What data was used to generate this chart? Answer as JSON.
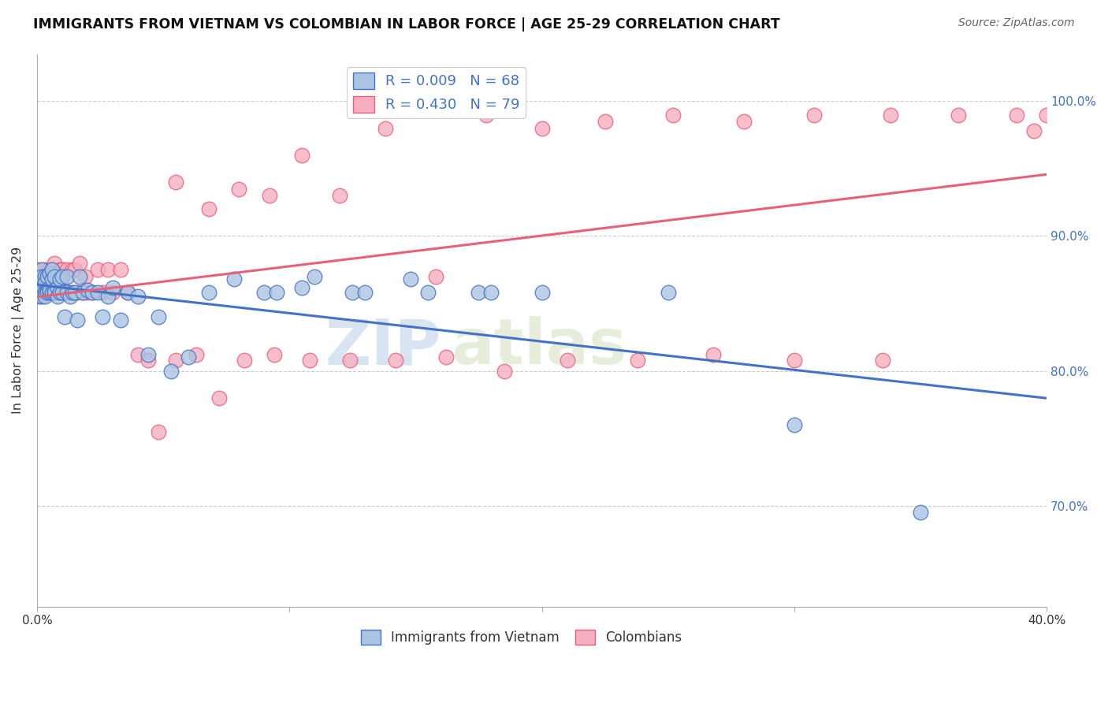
{
  "title": "IMMIGRANTS FROM VIETNAM VS COLOMBIAN IN LABOR FORCE | AGE 25-29 CORRELATION CHART",
  "source": "Source: ZipAtlas.com",
  "ylabel": "In Labor Force | Age 25-29",
  "ylabel_right_ticks": [
    "100.0%",
    "90.0%",
    "80.0%",
    "70.0%"
  ],
  "ylabel_right_vals": [
    1.0,
    0.9,
    0.8,
    0.7
  ],
  "xlim": [
    0.0,
    0.4
  ],
  "ylim": [
    0.625,
    1.035
  ],
  "color_vietnam": "#aac4e2",
  "color_colombian": "#f5afc0",
  "line_color_vietnam": "#4472c4",
  "line_color_colombian": "#e8607a",
  "watermark_zip": "ZIP",
  "watermark_atlas": "atlas",
  "vietnam_R": 0.009,
  "vietnam_N": 68,
  "colombian_R": 0.43,
  "colombian_N": 79,
  "vietnam_x": [
    0.001,
    0.001,
    0.001,
    0.002,
    0.002,
    0.002,
    0.002,
    0.003,
    0.003,
    0.003,
    0.003,
    0.004,
    0.004,
    0.004,
    0.005,
    0.005,
    0.005,
    0.005,
    0.006,
    0.006,
    0.006,
    0.007,
    0.007,
    0.007,
    0.008,
    0.008,
    0.009,
    0.009,
    0.01,
    0.01,
    0.011,
    0.012,
    0.012,
    0.013,
    0.014,
    0.015,
    0.016,
    0.017,
    0.018,
    0.02,
    0.022,
    0.024,
    0.026,
    0.028,
    0.03,
    0.033,
    0.036,
    0.04,
    0.044,
    0.048,
    0.053,
    0.06,
    0.068,
    0.078,
    0.09,
    0.105,
    0.125,
    0.148,
    0.175,
    0.2,
    0.095,
    0.11,
    0.13,
    0.155,
    0.18,
    0.25,
    0.3,
    0.35
  ],
  "vietnam_y": [
    0.87,
    0.86,
    0.855,
    0.875,
    0.86,
    0.87,
    0.855,
    0.87,
    0.865,
    0.858,
    0.855,
    0.86,
    0.87,
    0.858,
    0.862,
    0.858,
    0.872,
    0.86,
    0.858,
    0.868,
    0.875,
    0.86,
    0.858,
    0.87,
    0.862,
    0.855,
    0.858,
    0.868,
    0.87,
    0.858,
    0.84,
    0.87,
    0.858,
    0.855,
    0.858,
    0.858,
    0.838,
    0.87,
    0.858,
    0.86,
    0.858,
    0.858,
    0.84,
    0.855,
    0.862,
    0.838,
    0.858,
    0.855,
    0.812,
    0.84,
    0.8,
    0.81,
    0.858,
    0.868,
    0.858,
    0.862,
    0.858,
    0.868,
    0.858,
    0.858,
    0.858,
    0.87,
    0.858,
    0.858,
    0.858,
    0.858,
    0.76,
    0.695
  ],
  "colombian_x": [
    0.001,
    0.001,
    0.002,
    0.002,
    0.002,
    0.003,
    0.003,
    0.003,
    0.004,
    0.004,
    0.004,
    0.005,
    0.005,
    0.005,
    0.006,
    0.006,
    0.006,
    0.007,
    0.007,
    0.008,
    0.008,
    0.009,
    0.009,
    0.01,
    0.01,
    0.011,
    0.012,
    0.013,
    0.014,
    0.015,
    0.016,
    0.017,
    0.018,
    0.019,
    0.02,
    0.022,
    0.024,
    0.026,
    0.028,
    0.03,
    0.033,
    0.036,
    0.04,
    0.044,
    0.048,
    0.055,
    0.063,
    0.072,
    0.082,
    0.094,
    0.108,
    0.124,
    0.142,
    0.162,
    0.185,
    0.21,
    0.238,
    0.268,
    0.3,
    0.335,
    0.055,
    0.068,
    0.08,
    0.092,
    0.105,
    0.12,
    0.138,
    0.158,
    0.178,
    0.2,
    0.225,
    0.252,
    0.28,
    0.308,
    0.338,
    0.365,
    0.388,
    0.4,
    0.395
  ],
  "colombian_y": [
    0.875,
    0.858,
    0.87,
    0.858,
    0.868,
    0.875,
    0.86,
    0.858,
    0.87,
    0.858,
    0.865,
    0.875,
    0.858,
    0.875,
    0.858,
    0.875,
    0.858,
    0.858,
    0.88,
    0.87,
    0.858,
    0.858,
    0.875,
    0.862,
    0.875,
    0.858,
    0.875,
    0.858,
    0.875,
    0.875,
    0.858,
    0.88,
    0.858,
    0.87,
    0.858,
    0.858,
    0.875,
    0.858,
    0.875,
    0.858,
    0.875,
    0.858,
    0.812,
    0.808,
    0.755,
    0.808,
    0.812,
    0.78,
    0.808,
    0.812,
    0.808,
    0.808,
    0.808,
    0.81,
    0.8,
    0.808,
    0.808,
    0.812,
    0.808,
    0.808,
    0.94,
    0.92,
    0.935,
    0.93,
    0.96,
    0.93,
    0.98,
    0.87,
    0.99,
    0.98,
    0.985,
    0.99,
    0.985,
    0.99,
    0.99,
    0.99,
    0.99,
    0.99,
    0.978
  ]
}
